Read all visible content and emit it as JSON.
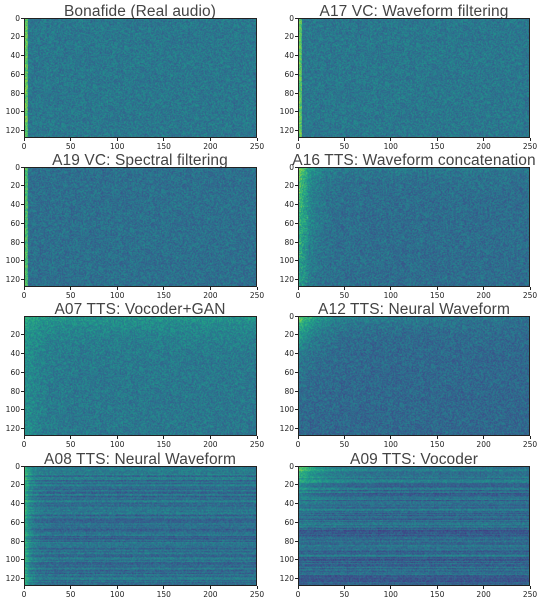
{
  "chart_data": [
    {
      "type": "heatmap",
      "title": "Bonafide (Real audio)",
      "x_ticks": [
        "0",
        "50",
        "100",
        "150",
        "200",
        "250"
      ],
      "y_ticks": [
        "0",
        "20",
        "40",
        "60",
        "80",
        "100",
        "120"
      ],
      "xlim": [
        0,
        250
      ],
      "ylim": [
        0,
        128
      ],
      "colormap": "viridis",
      "style": "uniform"
    },
    {
      "type": "heatmap",
      "title": "A17 VC: Waveform filtering",
      "x_ticks": [
        "0",
        "50",
        "100",
        "150",
        "200",
        "250"
      ],
      "y_ticks": [
        "0",
        "20",
        "40",
        "60",
        "80",
        "100",
        "120"
      ],
      "xlim": [
        0,
        250
      ],
      "ylim": [
        0,
        128
      ],
      "colormap": "viridis",
      "style": "uniform"
    },
    {
      "type": "heatmap",
      "title": "A19 VC: Spectral filtering",
      "x_ticks": [
        "0",
        "50",
        "100",
        "150",
        "200",
        "250"
      ],
      "y_ticks": [
        "0",
        "20",
        "40",
        "60",
        "80",
        "100",
        "120"
      ],
      "xlim": [
        0,
        250
      ],
      "ylim": [
        0,
        128
      ],
      "colormap": "viridis",
      "style": "uniform-dark"
    },
    {
      "type": "heatmap",
      "title": "A16 TTS: Waveform concatenation",
      "x_ticks": [
        "0",
        "50",
        "100",
        "150",
        "200",
        "250"
      ],
      "y_ticks": [
        "0",
        "20",
        "40",
        "60",
        "80",
        "100",
        "120"
      ],
      "xlim": [
        0,
        250
      ],
      "ylim": [
        0,
        128
      ],
      "colormap": "viridis",
      "style": "bright-left-top"
    },
    {
      "type": "heatmap",
      "title": "A07 TTS: Vocoder+GAN",
      "x_ticks": [
        "0",
        "50",
        "100",
        "150",
        "200",
        "250"
      ],
      "y_ticks": [
        "20",
        "40",
        "60",
        "80",
        "100",
        "120"
      ],
      "xlim": [
        0,
        250
      ],
      "ylim": [
        0,
        128
      ],
      "colormap": "viridis",
      "style": "bright-top"
    },
    {
      "type": "heatmap",
      "title": "A12 TTS: Neural Waveform",
      "x_ticks": [
        "0",
        "50",
        "100",
        "150",
        "200",
        "250"
      ],
      "y_ticks": [
        "0",
        "20",
        "40",
        "60",
        "80",
        "100",
        "120"
      ],
      "xlim": [
        0,
        250
      ],
      "ylim": [
        0,
        128
      ],
      "colormap": "viridis",
      "style": "bright-corner"
    },
    {
      "type": "heatmap",
      "title": "A08 TTS: Neural Waveform",
      "x_ticks": [
        "0",
        "50",
        "100",
        "150",
        "200",
        "250"
      ],
      "y_ticks": [
        "0",
        "20",
        "40",
        "60",
        "80",
        "100",
        "120"
      ],
      "xlim": [
        0,
        250
      ],
      "ylim": [
        0,
        128
      ],
      "colormap": "viridis",
      "style": "streaky"
    },
    {
      "type": "heatmap",
      "title": "A09 TTS: Vocoder",
      "x_ticks": [
        "0",
        "50",
        "100",
        "150",
        "200",
        "250"
      ],
      "y_ticks": [
        "0",
        "20",
        "40",
        "60",
        "80",
        "100",
        "120"
      ],
      "xlim": [
        0,
        250
      ],
      "ylim": [
        0,
        128
      ],
      "colormap": "viridis",
      "style": "streaky-bright"
    }
  ]
}
